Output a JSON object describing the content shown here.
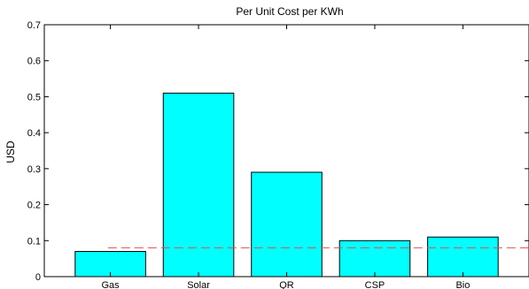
{
  "chart_data": {
    "type": "bar",
    "title": "Per Unit Cost per KWh",
    "xlabel": "",
    "ylabel": "USD",
    "categories": [
      "Gas",
      "Solar",
      "QR",
      "CSP",
      "Bio"
    ],
    "values": [
      0.07,
      0.51,
      0.29,
      0.1,
      0.11
    ],
    "ylim": [
      0,
      0.7
    ],
    "yticks": [
      "0",
      "0.1",
      "0.2",
      "0.3",
      "0.4",
      "0.5",
      "0.6",
      "0.7"
    ],
    "grid": false,
    "bar_color": "#00ffff",
    "reference_line": {
      "value": 0.08,
      "style": "dashed",
      "color": "#e05050"
    }
  }
}
